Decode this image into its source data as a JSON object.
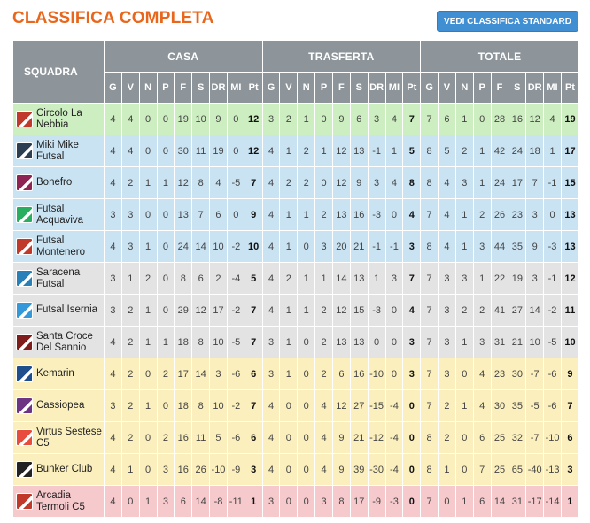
{
  "title": "CLASSIFICA COMPLETA",
  "standard_button": "VEDI CLASSIFICA STANDARD",
  "headers": {
    "squadra": "SQUADRA",
    "groups": [
      "CASA",
      "TRASFERTA",
      "TOTALE"
    ],
    "cols": [
      "G",
      "V",
      "N",
      "P",
      "F",
      "S",
      "DR",
      "MI",
      "Pt"
    ]
  },
  "zone_colors": {
    "green": "#cdeec0",
    "blue": "#c9e3f3",
    "grey": "#e3e3e3",
    "yellow": "#fbf0bd",
    "red": "#f6c9cd"
  },
  "rows": [
    {
      "team": "Circolo La Nebbia",
      "zone": "green",
      "logo": "#c0392b",
      "casa": [
        "4",
        "4",
        "0",
        "0",
        "19",
        "10",
        "9",
        "0",
        "12"
      ],
      "trasferta": [
        "3",
        "2",
        "1",
        "0",
        "9",
        "6",
        "3",
        "4",
        "7"
      ],
      "totale": [
        "7",
        "6",
        "1",
        "0",
        "28",
        "16",
        "12",
        "4",
        "19"
      ]
    },
    {
      "team": "Miki Mike Futsal",
      "zone": "blue",
      "logo": "#2c3e50",
      "casa": [
        "4",
        "4",
        "0",
        "0",
        "30",
        "11",
        "19",
        "0",
        "12"
      ],
      "trasferta": [
        "4",
        "1",
        "2",
        "1",
        "12",
        "13",
        "-1",
        "1",
        "5"
      ],
      "totale": [
        "8",
        "5",
        "2",
        "1",
        "42",
        "24",
        "18",
        "1",
        "17"
      ]
    },
    {
      "team": "Bonefro",
      "zone": "blue",
      "logo": "#8e2454",
      "casa": [
        "4",
        "2",
        "1",
        "1",
        "12",
        "8",
        "4",
        "-5",
        "7"
      ],
      "trasferta": [
        "4",
        "2",
        "2",
        "0",
        "12",
        "9",
        "3",
        "4",
        "8"
      ],
      "totale": [
        "8",
        "4",
        "3",
        "1",
        "24",
        "17",
        "7",
        "-1",
        "15"
      ]
    },
    {
      "team": "Futsal Acquaviva",
      "zone": "blue",
      "logo": "#27ae60",
      "casa": [
        "3",
        "3",
        "0",
        "0",
        "13",
        "7",
        "6",
        "0",
        "9"
      ],
      "trasferta": [
        "4",
        "1",
        "1",
        "2",
        "13",
        "16",
        "-3",
        "0",
        "4"
      ],
      "totale": [
        "7",
        "4",
        "1",
        "2",
        "26",
        "23",
        "3",
        "0",
        "13"
      ]
    },
    {
      "team": "Futsal Montenero",
      "zone": "blue",
      "logo": "#c0392b",
      "casa": [
        "4",
        "3",
        "1",
        "0",
        "24",
        "14",
        "10",
        "-2",
        "10"
      ],
      "trasferta": [
        "4",
        "1",
        "0",
        "3",
        "20",
        "21",
        "-1",
        "-1",
        "3"
      ],
      "totale": [
        "8",
        "4",
        "1",
        "3",
        "44",
        "35",
        "9",
        "-3",
        "13"
      ]
    },
    {
      "team": "Saracena Futsal",
      "zone": "grey",
      "logo": "#2980b9",
      "casa": [
        "3",
        "1",
        "2",
        "0",
        "8",
        "6",
        "2",
        "-4",
        "5"
      ],
      "trasferta": [
        "4",
        "2",
        "1",
        "1",
        "14",
        "13",
        "1",
        "3",
        "7"
      ],
      "totale": [
        "7",
        "3",
        "3",
        "1",
        "22",
        "19",
        "3",
        "-1",
        "12"
      ]
    },
    {
      "team": "Futsal Isernia",
      "zone": "grey",
      "logo": "#3498db",
      "casa": [
        "3",
        "2",
        "1",
        "0",
        "29",
        "12",
        "17",
        "-2",
        "7"
      ],
      "trasferta": [
        "4",
        "1",
        "1",
        "2",
        "12",
        "15",
        "-3",
        "0",
        "4"
      ],
      "totale": [
        "7",
        "3",
        "2",
        "2",
        "41",
        "27",
        "14",
        "-2",
        "11"
      ]
    },
    {
      "team": "Santa Croce Del Sannio",
      "zone": "grey",
      "logo": "#7f1d1d",
      "casa": [
        "4",
        "2",
        "1",
        "1",
        "18",
        "8",
        "10",
        "-5",
        "7"
      ],
      "trasferta": [
        "3",
        "1",
        "0",
        "2",
        "13",
        "13",
        "0",
        "0",
        "3"
      ],
      "totale": [
        "7",
        "3",
        "1",
        "3",
        "31",
        "21",
        "10",
        "-5",
        "10"
      ]
    },
    {
      "team": "Kemarin",
      "zone": "yellow",
      "logo": "#1f4e8c",
      "casa": [
        "4",
        "2",
        "0",
        "2",
        "17",
        "14",
        "3",
        "-6",
        "6"
      ],
      "trasferta": [
        "3",
        "1",
        "0",
        "2",
        "6",
        "16",
        "-10",
        "0",
        "3"
      ],
      "totale": [
        "7",
        "3",
        "0",
        "4",
        "23",
        "30",
        "-7",
        "-6",
        "9"
      ]
    },
    {
      "team": "Cassiopea",
      "zone": "yellow",
      "logo": "#6c3483",
      "casa": [
        "3",
        "2",
        "1",
        "0",
        "18",
        "8",
        "10",
        "-2",
        "7"
      ],
      "trasferta": [
        "4",
        "0",
        "0",
        "4",
        "12",
        "27",
        "-15",
        "-4",
        "0"
      ],
      "totale": [
        "7",
        "2",
        "1",
        "4",
        "30",
        "35",
        "-5",
        "-6",
        "7"
      ]
    },
    {
      "team": "Virtus Sestese C5",
      "zone": "yellow",
      "logo": "#e74c3c",
      "casa": [
        "4",
        "2",
        "0",
        "2",
        "16",
        "11",
        "5",
        "-6",
        "6"
      ],
      "trasferta": [
        "4",
        "0",
        "0",
        "4",
        "9",
        "21",
        "-12",
        "-4",
        "0"
      ],
      "totale": [
        "8",
        "2",
        "0",
        "6",
        "25",
        "32",
        "-7",
        "-10",
        "6"
      ]
    },
    {
      "team": "Bunker Club",
      "zone": "yellow",
      "logo": "#222222",
      "casa": [
        "4",
        "1",
        "0",
        "3",
        "16",
        "26",
        "-10",
        "-9",
        "3"
      ],
      "trasferta": [
        "4",
        "0",
        "0",
        "4",
        "9",
        "39",
        "-30",
        "-4",
        "0"
      ],
      "totale": [
        "8",
        "1",
        "0",
        "7",
        "25",
        "65",
        "-40",
        "-13",
        "3"
      ]
    },
    {
      "team": "Arcadia Termoli C5",
      "zone": "red",
      "logo": "#c0392b",
      "casa": [
        "4",
        "0",
        "1",
        "3",
        "6",
        "14",
        "-8",
        "-11",
        "1"
      ],
      "trasferta": [
        "3",
        "0",
        "0",
        "3",
        "8",
        "17",
        "-9",
        "-3",
        "0"
      ],
      "totale": [
        "7",
        "0",
        "1",
        "6",
        "14",
        "31",
        "-17",
        "-14",
        "1"
      ]
    }
  ]
}
